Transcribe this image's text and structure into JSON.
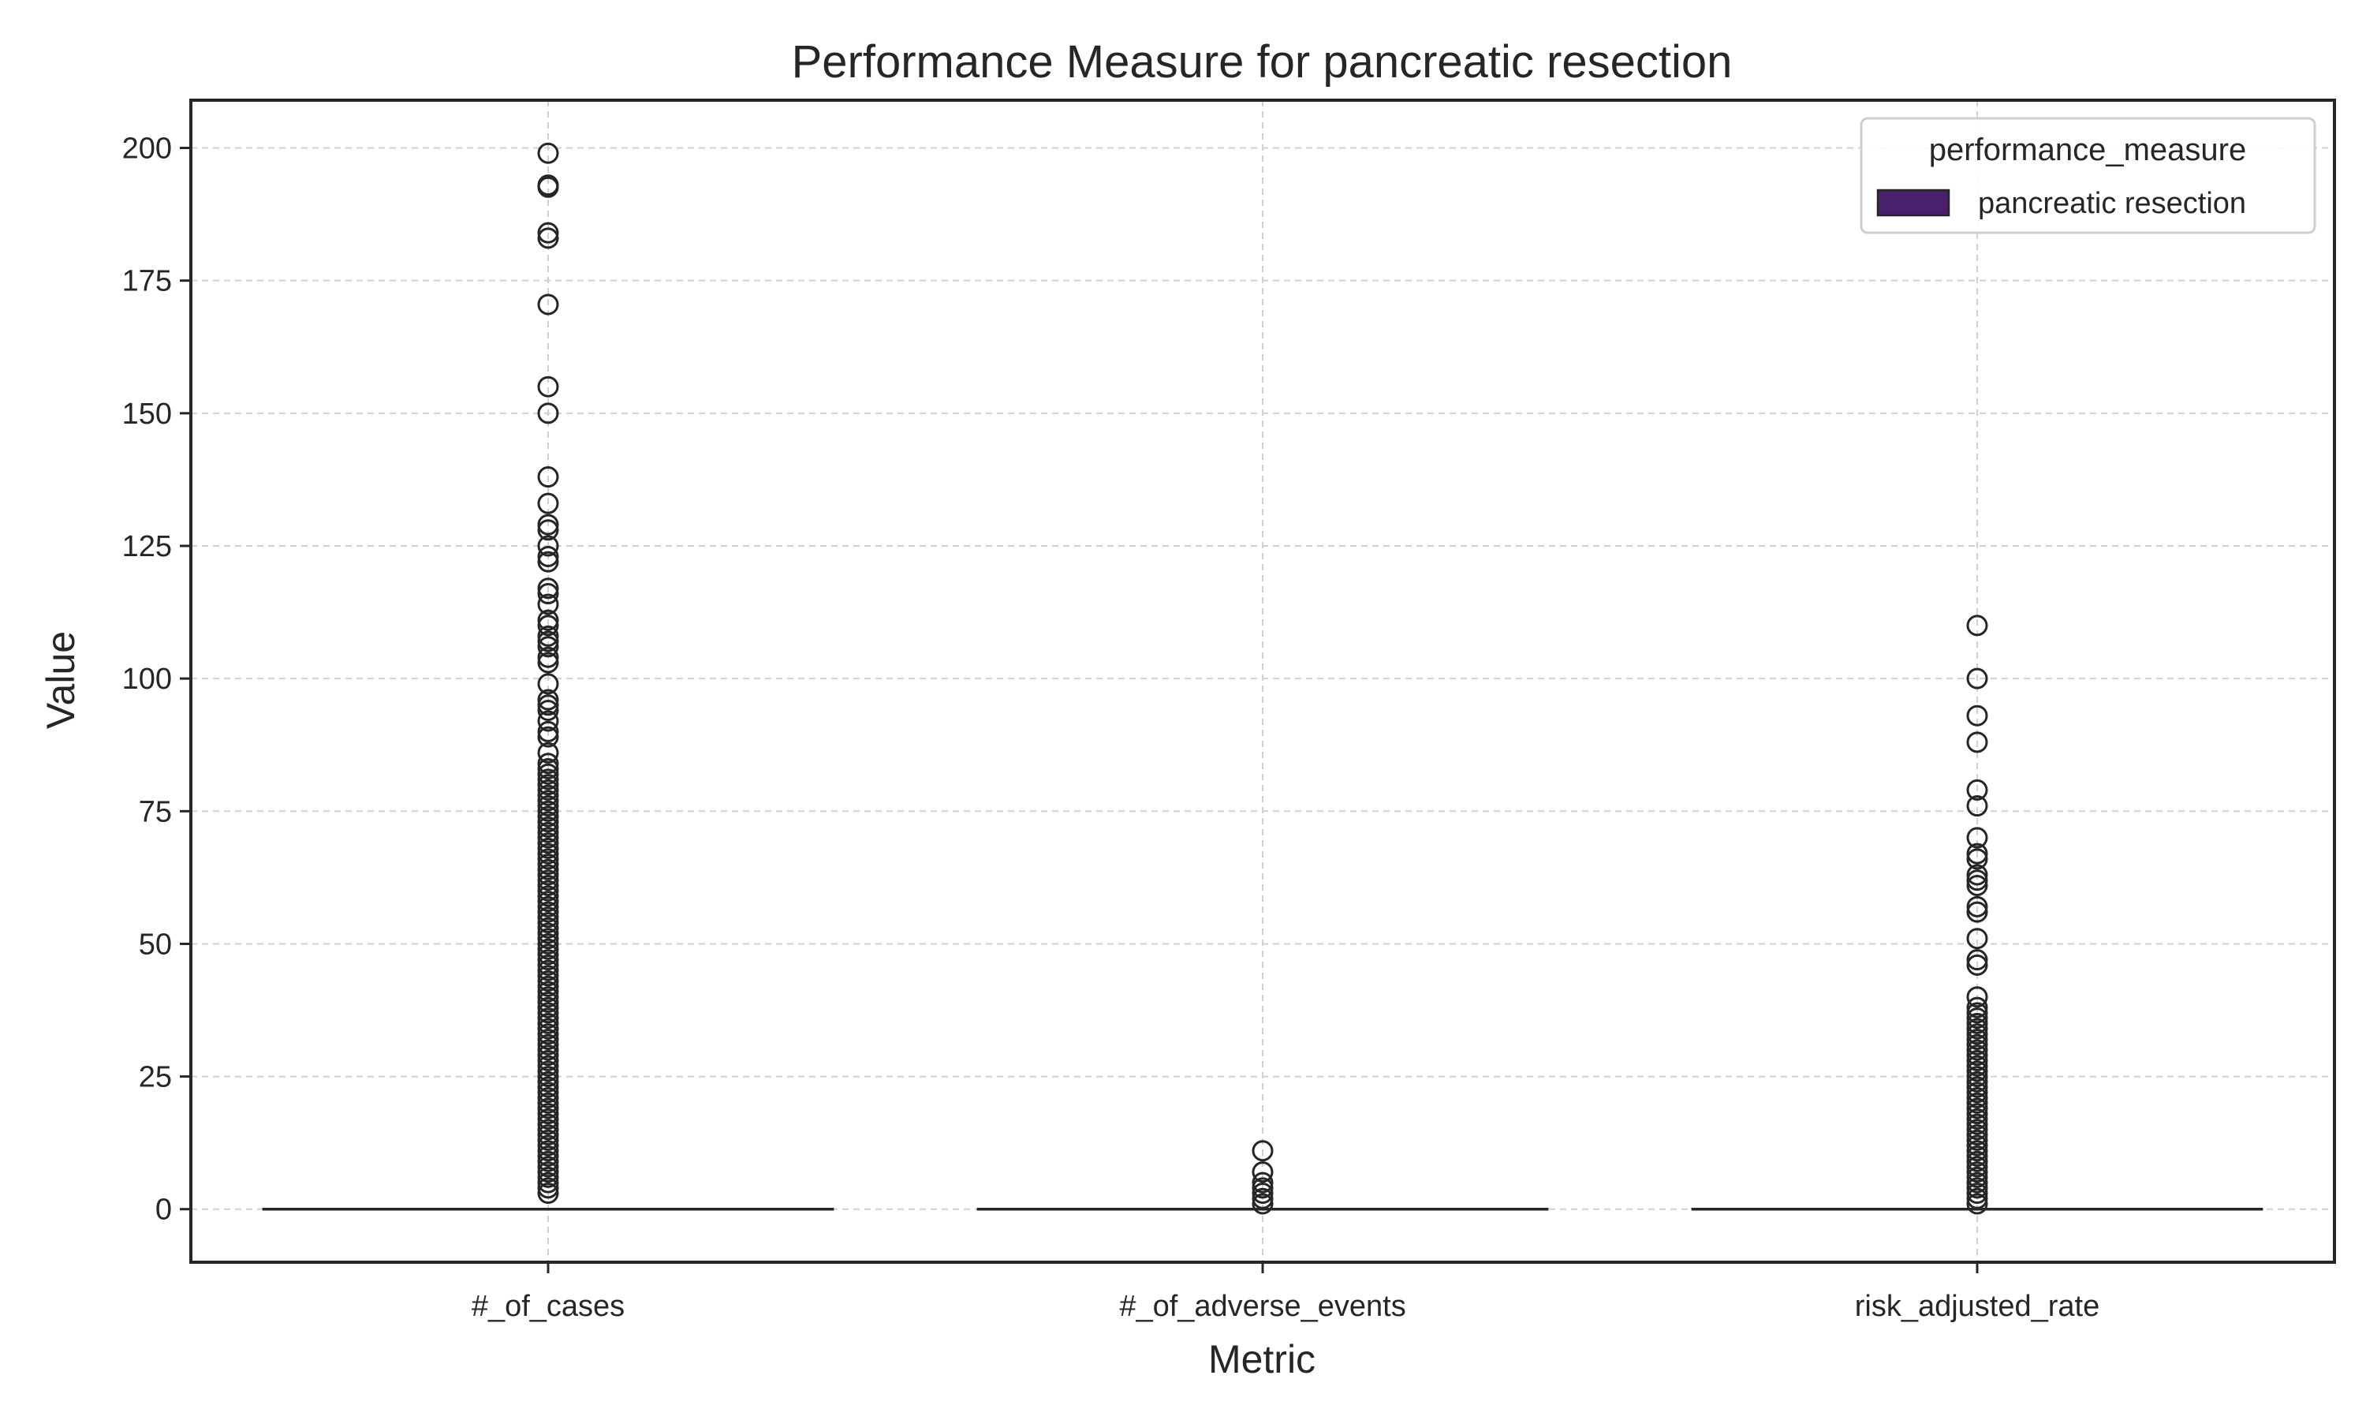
{
  "chart_data": {
    "type": "box",
    "title": "Performance Measure for pancreatic resection",
    "xlabel": "Metric",
    "ylabel": "Value",
    "categories": [
      "#_of_cases",
      "#_of_adverse_events",
      "risk_adjusted_rate"
    ],
    "ylim": [
      -10,
      209
    ],
    "yticks": [
      0,
      25,
      50,
      75,
      100,
      125,
      150,
      175,
      200
    ],
    "grid": true,
    "legend": {
      "title": "performance_measure",
      "position": "top-right",
      "entries": [
        {
          "label": "pancreatic resection",
          "color": "#4a1f6b"
        }
      ]
    },
    "series": [
      {
        "name": "pancreatic resection",
        "color": "#4a1f6b",
        "boxes": [
          {
            "category": "#_of_cases",
            "q1": 0,
            "median": 0,
            "q3": 0,
            "whisker_low": 0,
            "whisker_high": 0,
            "outliers": [
              199,
              193,
              192.6,
              184,
              183,
              170.5,
              155,
              150,
              138,
              133,
              129,
              128,
              125,
              123,
              122,
              117,
              116,
              114,
              111,
              110,
              108,
              107,
              106,
              104,
              103,
              99,
              96,
              95,
              94,
              92,
              90,
              89,
              86,
              84,
              83,
              82,
              81,
              80,
              79,
              78,
              77,
              76,
              75,
              74,
              73,
              72,
              71,
              70,
              69,
              68,
              67,
              66,
              65,
              64,
              63,
              62,
              61,
              60,
              59,
              58,
              57,
              56,
              55,
              54,
              53,
              52,
              51,
              50,
              49,
              48,
              47,
              46,
              45,
              44,
              43,
              42,
              41,
              40,
              39,
              38,
              37,
              36,
              35,
              34,
              33,
              32,
              31,
              30,
              29,
              28,
              27,
              26,
              25,
              24,
              23,
              22,
              21,
              20,
              19,
              18,
              17,
              16,
              15,
              14,
              13,
              12,
              11,
              10,
              9,
              8,
              7,
              6,
              5,
              4,
              3
            ]
          },
          {
            "category": "#_of_adverse_events",
            "q1": 0,
            "median": 0,
            "q3": 0,
            "whisker_low": 0,
            "whisker_high": 0,
            "outliers": [
              11,
              7,
              5,
              4,
              3,
              2,
              1
            ]
          },
          {
            "category": "risk_adjusted_rate",
            "q1": 0,
            "median": 0,
            "q3": 0,
            "whisker_low": 0,
            "whisker_high": 0,
            "outliers": [
              110,
              100,
              93,
              88,
              79,
              76,
              70,
              67,
              66,
              63,
              62,
              61,
              57,
              56,
              51,
              47,
              46,
              40,
              38,
              37,
              36,
              35,
              34,
              33,
              32,
              31,
              30,
              29,
              28,
              27,
              26,
              25,
              24,
              23,
              22,
              21,
              20,
              19,
              18,
              17,
              16,
              15,
              14,
              13,
              12,
              11,
              10,
              9,
              8,
              7,
              6,
              5,
              4,
              3,
              2,
              1
            ]
          }
        ]
      }
    ]
  }
}
